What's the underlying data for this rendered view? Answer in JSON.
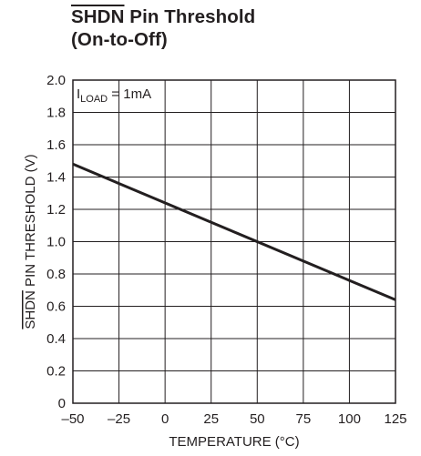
{
  "chart_data": {
    "type": "line",
    "title_line1_overlined": "SHDN",
    "title_line1_rest": " Pin Threshold",
    "title_line2": "(On-to-Off)",
    "xlabel": "TEMPERATURE (°C)",
    "ylabel_overlined": "SHDN",
    "ylabel_rest": " PIN THRESHOLD (V)",
    "annotation": {
      "main": "I",
      "sub": "LOAD",
      "rest": " = 1mA"
    },
    "xlim": [
      -50,
      125
    ],
    "ylim": [
      0,
      2.0
    ],
    "x_ticks": [
      -50,
      -25,
      0,
      25,
      50,
      75,
      100,
      125
    ],
    "x_tick_labels": [
      "–50",
      "–25",
      "0",
      "25",
      "50",
      "75",
      "100",
      "125"
    ],
    "y_ticks": [
      0,
      0.2,
      0.4,
      0.6,
      0.8,
      1.0,
      1.2,
      1.4,
      1.6,
      1.8,
      2.0
    ],
    "y_tick_labels": [
      "0",
      "0.2",
      "0.4",
      "0.6",
      "0.8",
      "1.0",
      "1.2",
      "1.4",
      "1.6",
      "1.8",
      "2.0"
    ],
    "grid": true,
    "series": [
      {
        "x": [
          -50,
          125
        ],
        "y": [
          1.48,
          0.64
        ]
      }
    ],
    "line_color": "#231f20"
  }
}
